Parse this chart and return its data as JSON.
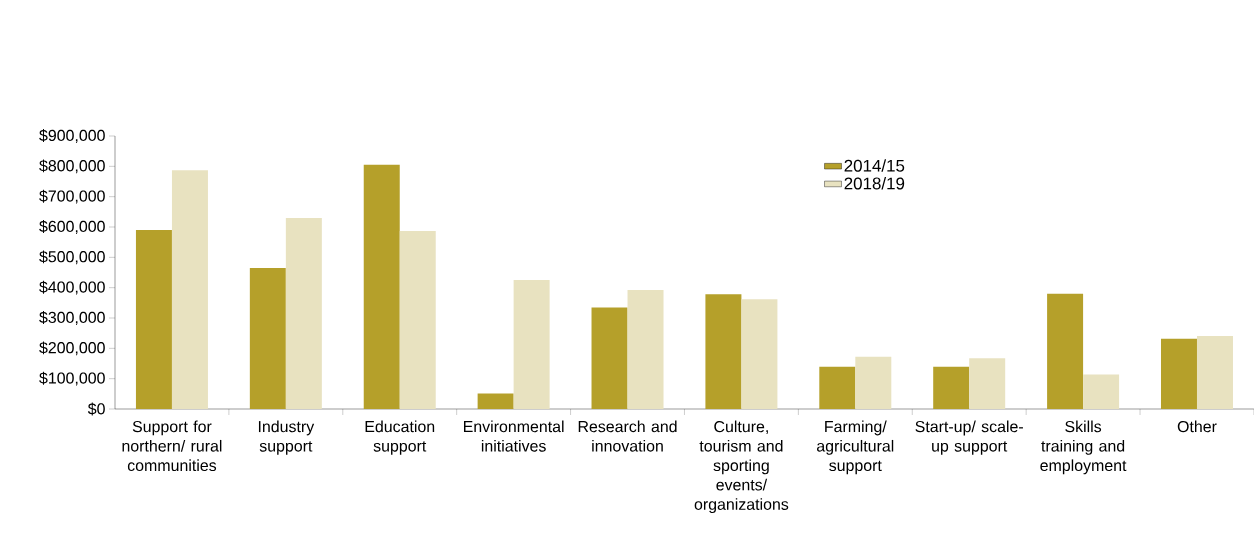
{
  "chart_data": {
    "type": "bar",
    "categories": [
      "Support for northern/ rural communities",
      "Industry support",
      "Education support",
      "Environmental initiatives",
      "Research and innovation",
      "Culture, tourism and sporting events/ organizations",
      "Farming/ agricultural support",
      "Start-up/ scale-up support",
      "Skills training and employment",
      "Other"
    ],
    "series": [
      {
        "name": "2014/15",
        "color": "#b5a02a",
        "values": [
          590000,
          465000,
          805000,
          51000,
          335000,
          378000,
          139000,
          139000,
          380000,
          232000
        ]
      },
      {
        "name": "2018/19",
        "color": "#e8e2c0",
        "values": [
          787000,
          630000,
          587000,
          425000,
          392000,
          362000,
          172000,
          167000,
          114000,
          241000
        ]
      }
    ],
    "ylim": [
      0,
      900000
    ],
    "yticks": [
      {
        "value": 0,
        "label": "$0"
      },
      {
        "value": 100000,
        "label": "$100,000"
      },
      {
        "value": 200000,
        "label": "$200,000"
      },
      {
        "value": 300000,
        "label": "$300,000"
      },
      {
        "value": 400000,
        "label": "$400,000"
      },
      {
        "value": 500000,
        "label": "$500,000"
      },
      {
        "value": 600000,
        "label": "$600,000"
      },
      {
        "value": 700000,
        "label": "$700,000"
      },
      {
        "value": 800000,
        "label": "$800,000"
      },
      {
        "value": 900000,
        "label": "$900,000"
      }
    ],
    "grid": false,
    "legend": "top right"
  }
}
